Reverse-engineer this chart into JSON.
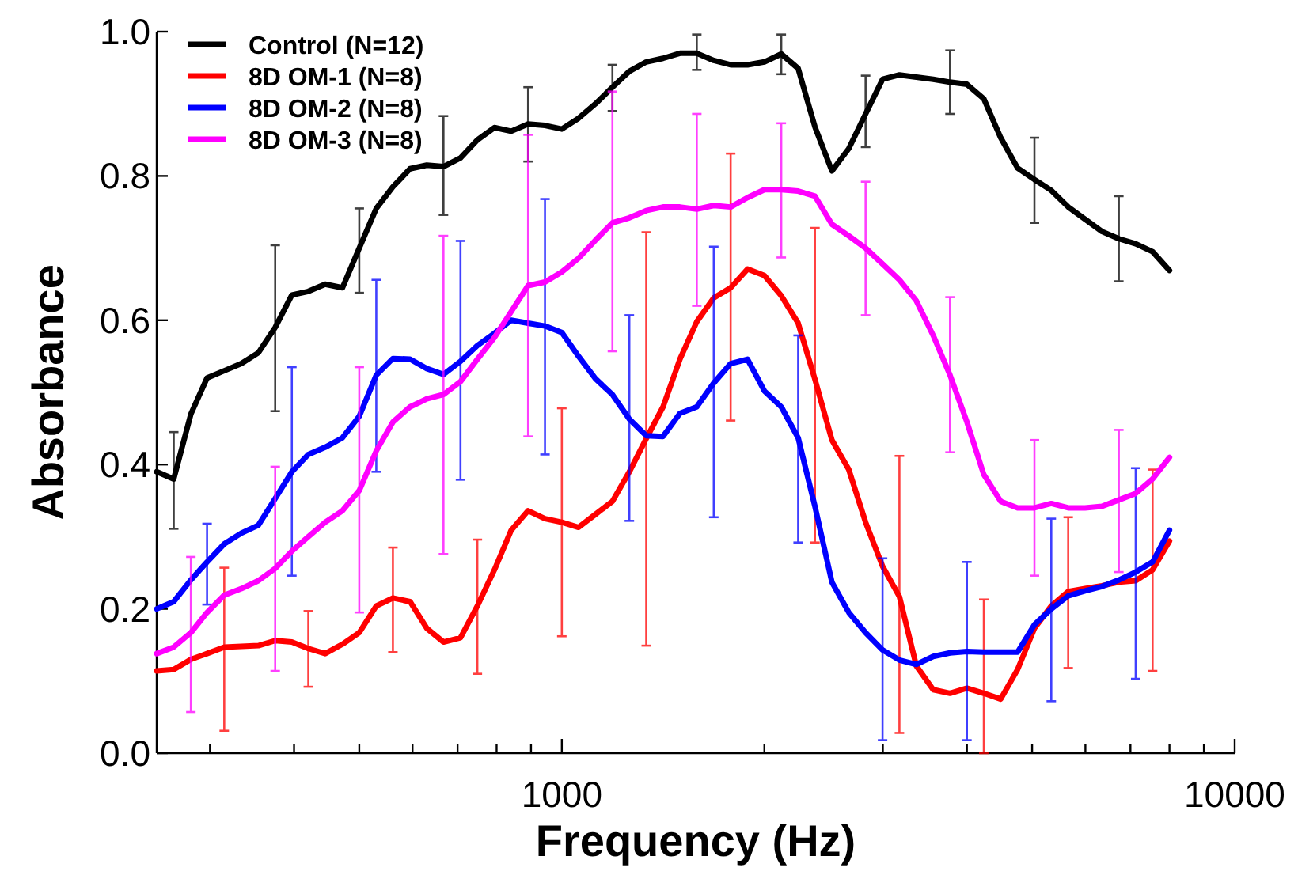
{
  "chart_data": {
    "type": "line",
    "xlabel": "Frequency (Hz)",
    "ylabel": "Absorbance",
    "log": "x",
    "grid": false,
    "legend": "top left",
    "marker": "none",
    "line_style": "solid",
    "x": [
      250,
      265,
      281,
      297,
      315,
      334,
      354,
      375,
      397,
      420,
      445,
      472,
      500,
      530,
      561,
      595,
      630,
      667,
      707,
      749,
      794,
      841,
      891,
      944,
      1000,
      1059,
      1122,
      1189,
      1260,
      1335,
      1414,
      1498,
      1587,
      1682,
      1782,
      1888,
      2000,
      2119,
      2245,
      2378,
      2520,
      2670,
      2828,
      2997,
      3175,
      3364,
      3564,
      3775,
      4000,
      4238,
      4490,
      4757,
      5040,
      5339,
      5657,
      5993,
      6350,
      6727,
      7127,
      7551,
      8000
    ],
    "xlim": [
      250,
      10000
    ],
    "xticks": [
      {
        "value": 300,
        "label": null
      },
      {
        "value": 400,
        "label": null
      },
      {
        "value": 500,
        "label": null
      },
      {
        "value": 600,
        "label": null
      },
      {
        "value": 700,
        "label": null
      },
      {
        "value": 800,
        "label": null
      },
      {
        "value": 900,
        "label": null
      },
      1000,
      {
        "value": 2000,
        "label": null
      },
      {
        "value": 3000,
        "label": null
      },
      {
        "value": 4000,
        "label": null
      },
      {
        "value": 5000,
        "label": null
      },
      {
        "value": 6000,
        "label": null
      },
      {
        "value": 7000,
        "label": null
      },
      {
        "value": 8000,
        "label": null
      },
      {
        "value": 9000,
        "label": null
      },
      10000
    ],
    "ylim": [
      0,
      1
    ],
    "yticks": [
      {
        "value": 0,
        "label": "0.0"
      },
      {
        "value": 0.2,
        "label": "0.2"
      },
      {
        "value": 0.4,
        "label": "0.4"
      },
      {
        "value": 0.6,
        "label": "0.6"
      },
      {
        "value": 0.8,
        "label": "0.8"
      },
      {
        "value": 1,
        "label": "1.0"
      }
    ],
    "series": [
      {
        "name": "Control (N=12)",
        "color": "#000000",
        "values": [
          0.39,
          0.38,
          0.47,
          0.52,
          0.53,
          0.54,
          0.555,
          0.59,
          0.635,
          0.64,
          0.65,
          0.645,
          0.7,
          0.755,
          0.785,
          0.81,
          0.815,
          0.813,
          0.825,
          0.85,
          0.867,
          0.862,
          0.872,
          0.87,
          0.865,
          0.88,
          0.9,
          0.923,
          0.945,
          0.958,
          0.963,
          0.97,
          0.97,
          0.96,
          0.954,
          0.954,
          0.958,
          0.969,
          0.949,
          0.868,
          0.807,
          0.838,
          0.886,
          0.934,
          0.94,
          0.937,
          0.934,
          0.93,
          0.927,
          0.907,
          0.853,
          0.811,
          0.795,
          0.78,
          0.757,
          0.74,
          0.723,
          0.713,
          0.706,
          0.695,
          0.669
        ],
        "errors": [
          null,
          [
            0.311,
            0.445
          ],
          null,
          null,
          null,
          null,
          null,
          [
            0.474,
            0.704
          ],
          null,
          null,
          null,
          null,
          [
            0.638,
            0.755
          ],
          null,
          null,
          null,
          null,
          [
            0.746,
            0.883
          ],
          null,
          null,
          null,
          null,
          [
            0.82,
            0.923
          ],
          null,
          null,
          null,
          null,
          [
            0.89,
            0.954
          ],
          null,
          null,
          null,
          null,
          [
            0.947,
            0.996
          ],
          null,
          null,
          null,
          null,
          [
            0.941,
            0.996
          ],
          null,
          null,
          null,
          null,
          [
            0.84,
            0.939
          ],
          null,
          null,
          null,
          null,
          [
            0.886,
            0.974
          ],
          null,
          null,
          null,
          null,
          [
            0.735,
            0.853
          ],
          null,
          null,
          null,
          null,
          [
            0.654,
            0.772
          ],
          null,
          null,
          null
        ]
      },
      {
        "name": "8D OM-1 (N=8)",
        "color": "#ff0000",
        "values": [
          0.114,
          0.116,
          0.13,
          0.138,
          0.147,
          0.148,
          0.149,
          0.156,
          0.154,
          0.145,
          0.138,
          0.151,
          0.167,
          0.204,
          0.215,
          0.21,
          0.173,
          0.154,
          0.16,
          0.204,
          0.254,
          0.309,
          0.336,
          0.325,
          0.32,
          0.313,
          0.331,
          0.349,
          0.39,
          0.436,
          0.48,
          0.546,
          0.598,
          0.631,
          0.645,
          0.671,
          0.662,
          0.634,
          0.596,
          0.518,
          0.434,
          0.393,
          0.32,
          0.259,
          0.217,
          0.121,
          0.088,
          0.083,
          0.09,
          0.083,
          0.075,
          0.116,
          0.173,
          0.204,
          0.224,
          0.228,
          0.232,
          0.237,
          0.239,
          0.254,
          0.294
        ],
        "errors": [
          null,
          null,
          null,
          null,
          [
            0.031,
            0.257
          ],
          null,
          null,
          null,
          null,
          [
            0.092,
            0.197
          ],
          null,
          null,
          null,
          null,
          [
            0.14,
            0.285
          ],
          null,
          null,
          null,
          null,
          [
            0.11,
            0.296
          ],
          null,
          null,
          null,
          null,
          [
            0.162,
            0.478
          ],
          null,
          null,
          null,
          null,
          [
            0.149,
            0.722
          ],
          null,
          null,
          null,
          null,
          [
            0.461,
            0.831
          ],
          null,
          null,
          null,
          null,
          [
            0.292,
            0.728
          ],
          null,
          null,
          null,
          null,
          [
            0.028,
            0.412
          ],
          null,
          null,
          null,
          null,
          [
            0,
            0.213
          ],
          null,
          null,
          null,
          null,
          [
            0.118,
            0.327
          ],
          null,
          null,
          null,
          null,
          [
            0.114,
            0.393
          ],
          null
        ]
      },
      {
        "name": "8D OM-2 (N=8)",
        "color": "#0000ff",
        "values": [
          0.2,
          0.21,
          0.24,
          0.265,
          0.29,
          0.305,
          0.316,
          0.353,
          0.39,
          0.414,
          0.424,
          0.437,
          0.467,
          0.524,
          0.547,
          0.546,
          0.533,
          0.525,
          0.543,
          0.565,
          0.582,
          0.6,
          0.596,
          0.592,
          0.583,
          0.55,
          0.519,
          0.497,
          0.463,
          0.44,
          0.439,
          0.471,
          0.48,
          0.513,
          0.54,
          0.546,
          0.502,
          0.48,
          0.437,
          0.342,
          0.237,
          0.195,
          0.167,
          0.143,
          0.129,
          0.123,
          0.134,
          0.139,
          0.141,
          0.14,
          0.14,
          0.14,
          0.178,
          0.2,
          0.218,
          0.225,
          0.231,
          0.24,
          0.251,
          0.265,
          0.309
        ],
        "errors": [
          null,
          null,
          null,
          [
            0.206,
            0.318
          ],
          null,
          null,
          null,
          null,
          [
            0.246,
            0.535
          ],
          null,
          null,
          null,
          null,
          [
            0.39,
            0.656
          ],
          null,
          null,
          null,
          null,
          [
            0.379,
            0.71
          ],
          null,
          null,
          null,
          null,
          [
            0.414,
            0.768
          ],
          null,
          null,
          null,
          null,
          [
            0.322,
            0.607
          ],
          null,
          null,
          null,
          null,
          [
            0.327,
            0.702
          ],
          null,
          null,
          null,
          null,
          [
            0.292,
            0.579
          ],
          null,
          null,
          null,
          null,
          [
            0.018,
            0.27
          ],
          null,
          null,
          null,
          null,
          [
            0.018,
            0.265
          ],
          null,
          null,
          null,
          null,
          [
            0.072,
            0.325
          ],
          null,
          null,
          null,
          null,
          [
            0.103,
            0.395
          ],
          null,
          null
        ]
      },
      {
        "name": "8D OM-3 (N=8)",
        "color": "#ff00ff",
        "values": [
          0.138,
          0.147,
          0.167,
          0.195,
          0.219,
          0.228,
          0.239,
          0.256,
          0.28,
          0.3,
          0.32,
          0.336,
          0.364,
          0.419,
          0.459,
          0.48,
          0.491,
          0.497,
          0.515,
          0.546,
          0.576,
          0.612,
          0.648,
          0.653,
          0.667,
          0.686,
          0.711,
          0.735,
          0.742,
          0.752,
          0.757,
          0.757,
          0.754,
          0.759,
          0.757,
          0.77,
          0.781,
          0.781,
          0.779,
          0.772,
          0.733,
          0.717,
          0.7,
          0.678,
          0.656,
          0.627,
          0.579,
          0.524,
          0.459,
          0.386,
          0.349,
          0.34,
          0.34,
          0.346,
          0.34,
          0.34,
          0.342,
          0.351,
          0.36,
          0.38,
          0.41
        ],
        "errors": [
          null,
          null,
          [
            0.057,
            0.272
          ],
          null,
          null,
          null,
          null,
          [
            0.114,
            0.397
          ],
          null,
          null,
          null,
          null,
          [
            0.195,
            0.535
          ],
          null,
          null,
          null,
          null,
          [
            0.276,
            0.717
          ],
          null,
          null,
          null,
          null,
          [
            0.439,
            0.857
          ],
          null,
          null,
          null,
          null,
          [
            0.557,
            0.917
          ],
          null,
          null,
          null,
          null,
          [
            0.62,
            0.886
          ],
          null,
          null,
          null,
          null,
          [
            0.687,
            0.873
          ],
          null,
          null,
          null,
          null,
          [
            0.607,
            0.792
          ],
          null,
          null,
          null,
          null,
          [
            0.417,
            0.632
          ],
          null,
          null,
          null,
          null,
          [
            0.246,
            0.434
          ],
          null,
          null,
          null,
          null,
          [
            0.251,
            0.448
          ],
          null,
          null,
          null
        ]
      }
    ]
  }
}
